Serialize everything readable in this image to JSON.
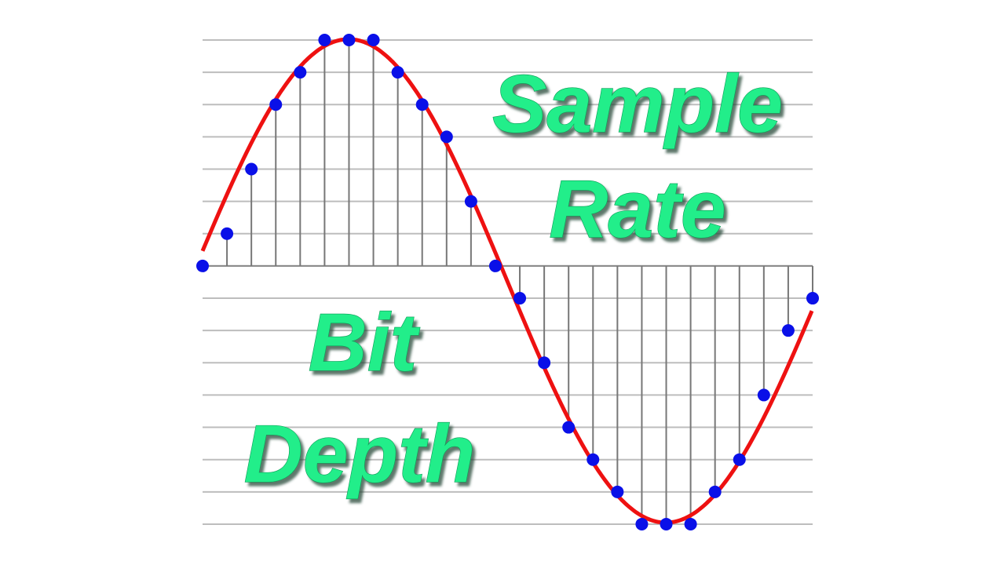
{
  "labels": {
    "top": [
      "Sample",
      "Rate"
    ],
    "bottom": [
      "Bit",
      "Depth"
    ]
  }
}
